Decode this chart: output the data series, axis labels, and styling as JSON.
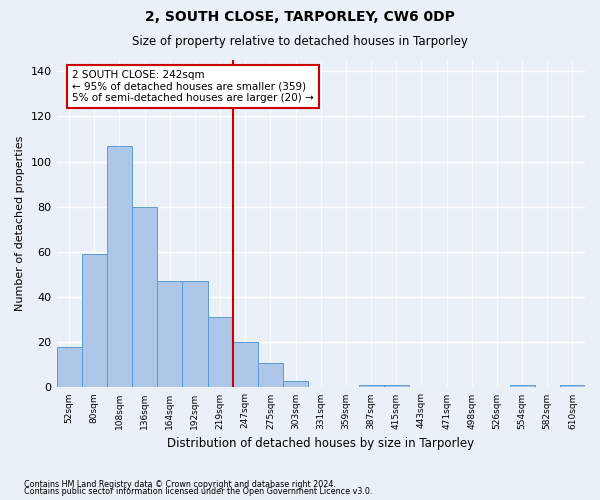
{
  "title": "2, SOUTH CLOSE, TARPORLEY, CW6 0DP",
  "subtitle": "Size of property relative to detached houses in Tarporley",
  "xlabel": "Distribution of detached houses by size in Tarporley",
  "ylabel": "Number of detached properties",
  "footnote1": "Contains HM Land Registry data © Crown copyright and database right 2024.",
  "footnote2": "Contains public sector information licensed under the Open Government Licence v3.0.",
  "bar_values": [
    18,
    59,
    107,
    80,
    47,
    47,
    31,
    20,
    11,
    3,
    0,
    0,
    1,
    1,
    0,
    0,
    0,
    0,
    1,
    0,
    1
  ],
  "categories": [
    "52sqm",
    "80sqm",
    "108sqm",
    "136sqm",
    "164sqm",
    "192sqm",
    "219sqm",
    "247sqm",
    "275sqm",
    "303sqm",
    "331sqm",
    "359sqm",
    "387sqm",
    "415sqm",
    "443sqm",
    "471sqm",
    "498sqm",
    "526sqm",
    "554sqm",
    "582sqm",
    "610sqm"
  ],
  "bar_color": "#aec6e8",
  "bar_edge_color": "#5b9bd5",
  "background_color": "#eaf0f8",
  "grid_color": "#ffffff",
  "red_line_index": 6.5,
  "annotation_line1": "2 SOUTH CLOSE: 242sqm",
  "annotation_line2": "← 95% of detached houses are smaller (359)",
  "annotation_line3": "5% of semi-detached houses are larger (20) →",
  "annotation_box_color": "#ffffff",
  "annotation_box_edge": "#cc0000",
  "ylim": [
    0,
    145
  ],
  "yticks": [
    0,
    20,
    40,
    60,
    80,
    100,
    120,
    140
  ]
}
